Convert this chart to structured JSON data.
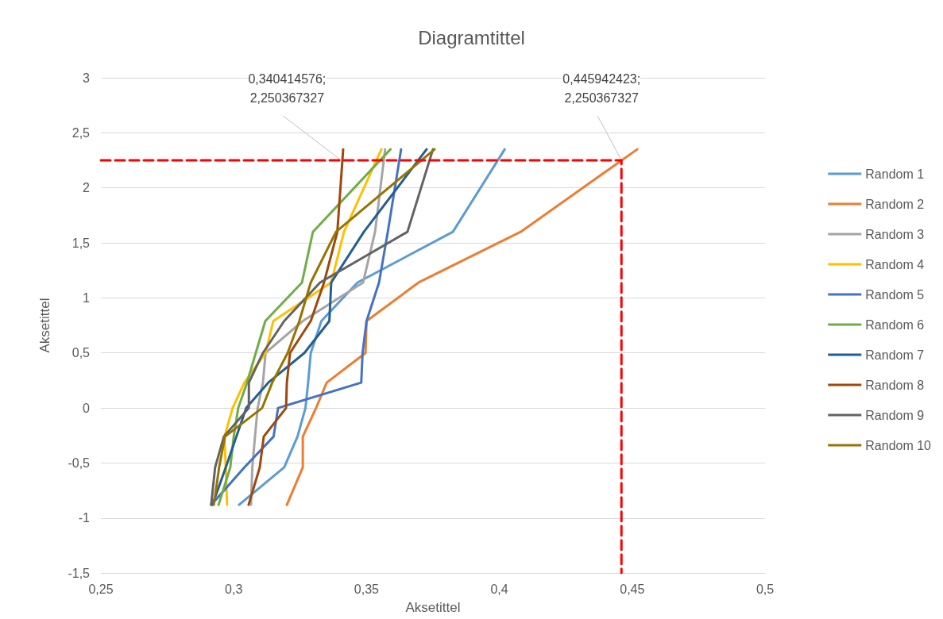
{
  "chart_data": {
    "type": "line",
    "title": "Diagramtittel",
    "xlabel": "Aksetittel",
    "ylabel": "Aksetittel",
    "xlim": [
      0.25,
      0.5
    ],
    "xticks": [
      {
        "value": 0.25,
        "label": "0,25"
      },
      {
        "value": 0.3,
        "label": "0,3"
      },
      {
        "value": 0.35,
        "label": "0,35"
      },
      {
        "value": 0.4,
        "label": "0,4"
      },
      {
        "value": 0.45,
        "label": "0,45"
      },
      {
        "value": 0.5,
        "label": "0,5"
      }
    ],
    "ylim": [
      -1.5,
      3
    ],
    "yticks": [
      {
        "value": -1.5,
        "label": "-1,5"
      },
      {
        "value": -1,
        "label": "-1"
      },
      {
        "value": -0.5,
        "label": "-0,5"
      },
      {
        "value": 0,
        "label": "0"
      },
      {
        "value": 0.5,
        "label": "0,5"
      },
      {
        "value": 1,
        "label": "1"
      },
      {
        "value": 1.5,
        "label": "1,5"
      },
      {
        "value": 2,
        "label": "2"
      },
      {
        "value": 2.5,
        "label": "2,5"
      },
      {
        "value": 3,
        "label": "3"
      }
    ],
    "grid": "y",
    "legend": "right",
    "marker": "none",
    "line_style": "solid",
    "series": [
      {
        "name": "Random 1",
        "color": "#5b9bd5",
        "x": [
          0.302,
          0.319,
          0.324,
          0.327,
          0.328,
          0.329,
          0.333,
          0.3466,
          0.3825,
          0.402
        ],
        "values": [
          -0.88,
          -0.54,
          -0.26,
          0,
          0.23,
          0.5,
          0.79,
          1.14,
          1.6,
          2.35
        ]
      },
      {
        "name": "Random 2",
        "color": "#ed7d31",
        "x": [
          0.32,
          0.326,
          0.326,
          0.331,
          0.335,
          0.3496,
          0.35,
          0.3696,
          0.408,
          0.4519
        ],
        "values": [
          -0.88,
          -0.54,
          -0.26,
          0,
          0.23,
          0.5,
          0.79,
          1.14,
          1.6,
          2.35
        ]
      },
      {
        "name": "Random 3",
        "color": "#a5a5a5",
        "x": [
          0.3065,
          0.307,
          0.308,
          0.309,
          0.311,
          0.312,
          0.326,
          0.3487,
          0.3532,
          0.357
        ],
        "values": [
          -0.88,
          -0.54,
          -0.26,
          0,
          0.23,
          0.5,
          0.79,
          1.14,
          1.6,
          2.35
        ]
      },
      {
        "name": "Random 4",
        "color": "#ffc000",
        "x": [
          0.2975,
          0.297,
          0.2965,
          0.2996,
          0.304,
          0.312,
          0.3149,
          0.3367,
          0.3415,
          0.3556
        ],
        "values": [
          -0.88,
          -0.54,
          -0.26,
          0,
          0.23,
          0.5,
          0.79,
          1.14,
          1.6,
          2.35
        ]
      },
      {
        "name": "Random 5",
        "color": "#4472c4",
        "x": [
          0.2916,
          0.304,
          0.315,
          0.3167,
          0.348,
          0.3485,
          0.35,
          0.3547,
          0.358,
          0.363
        ],
        "values": [
          -0.88,
          -0.54,
          -0.26,
          0,
          0.23,
          0.5,
          0.79,
          1.14,
          1.6,
          2.35
        ]
      },
      {
        "name": "Random 6",
        "color": "#70ad47",
        "x": [
          0.2943,
          0.2987,
          0.3,
          0.3017,
          0.305,
          0.3083,
          0.3119,
          0.3257,
          0.3298,
          0.359
        ],
        "values": [
          -0.88,
          -0.54,
          -0.26,
          0,
          0.23,
          0.5,
          0.79,
          1.14,
          1.6,
          2.35
        ]
      },
      {
        "name": "Random 7",
        "color": "#255e91",
        "x": [
          0.292,
          0.297,
          0.301,
          0.3047,
          0.313,
          0.3266,
          0.336,
          0.3367,
          0.349,
          0.3726
        ],
        "values": [
          -0.88,
          -0.54,
          -0.26,
          0,
          0.23,
          0.5,
          0.79,
          1.14,
          1.6,
          2.35
        ]
      },
      {
        "name": "Random 8",
        "color": "#9e480e",
        "x": [
          0.3056,
          0.3098,
          0.3113,
          0.3197,
          0.32,
          0.3212,
          0.329,
          0.334,
          0.339,
          0.3412
        ],
        "values": [
          -0.88,
          -0.54,
          -0.26,
          0,
          0.23,
          0.5,
          0.79,
          1.14,
          1.6,
          2.35
        ]
      },
      {
        "name": "Random 9",
        "color": "#636363",
        "x": [
          0.2915,
          0.293,
          0.2963,
          0.3057,
          0.3057,
          0.311,
          0.319,
          0.3325,
          0.3654,
          0.375
        ],
        "values": [
          -0.88,
          -0.54,
          -0.26,
          0,
          0.23,
          0.5,
          0.79,
          1.14,
          1.6,
          2.35
        ]
      },
      {
        "name": "Random 10",
        "color": "#997300",
        "x": [
          0.2925,
          0.2945,
          0.2967,
          0.3107,
          0.3145,
          0.3203,
          0.3247,
          0.329,
          0.3385,
          0.3756
        ],
        "values": [
          -0.88,
          -0.54,
          -0.26,
          0,
          0.23,
          0.5,
          0.79,
          1.14,
          1.6,
          2.35
        ]
      },
      {
        "color": "#ff0000",
        "line_style": "dashed",
        "x": [
          0.25,
          0.445942423,
          0.445942423
        ],
        "values": [
          2.250367327,
          2.250367327,
          -1.5
        ]
      }
    ],
    "annotations": [
      {
        "text": "0,340414576;\n2,250367327",
        "x": 0.340414576,
        "y": 2.250367327
      },
      {
        "text": "0,445942423;\n2,250367327",
        "x": 0.445942423,
        "y": 2.250367327
      }
    ]
  }
}
